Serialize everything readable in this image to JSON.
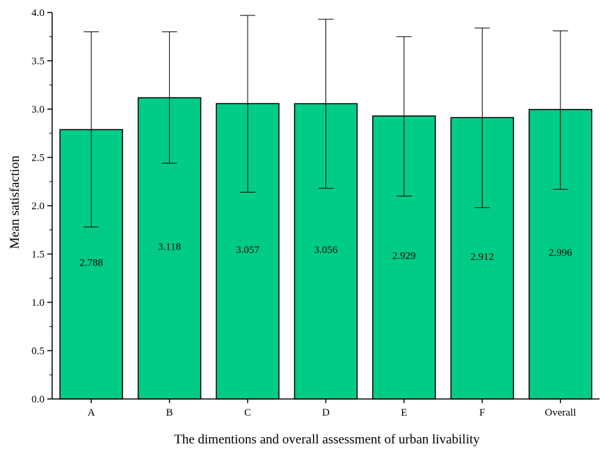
{
  "chart_data": {
    "type": "bar",
    "title": "",
    "xlabel": "The dimentions and overall assessment of urban livability",
    "ylabel": "Mean satisfaction",
    "ylim": [
      0.0,
      4.0
    ],
    "yticks": [
      "0.0",
      "0.5",
      "1.0",
      "1.5",
      "2.0",
      "2.5",
      "3.0",
      "3.5",
      "4.0"
    ],
    "grid": false,
    "bar_color": "#00cc88",
    "categories": [
      "A",
      "B",
      "C",
      "D",
      "E",
      "F",
      "Overall"
    ],
    "values": [
      2.788,
      3.118,
      3.057,
      3.056,
      2.929,
      2.912,
      2.996
    ],
    "value_labels": [
      "2.788",
      "3.118",
      "3.057",
      "3.056",
      "2.929",
      "2.912",
      "2.996"
    ],
    "error_upper": [
      3.8,
      3.8,
      3.97,
      3.93,
      3.75,
      3.84,
      3.81
    ],
    "error_lower": [
      1.78,
      2.44,
      2.14,
      2.18,
      2.1,
      1.98,
      2.17
    ]
  }
}
